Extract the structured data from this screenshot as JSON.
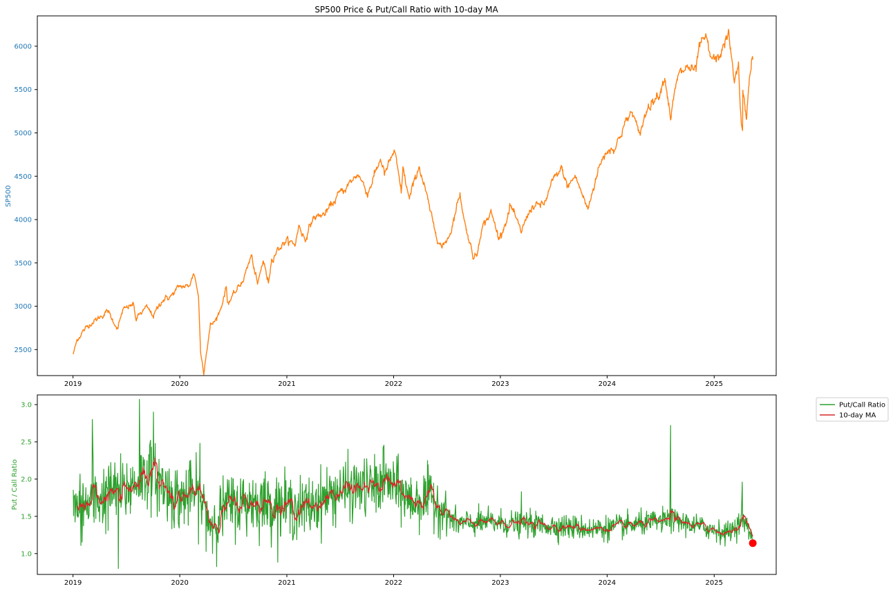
{
  "figure": {
    "title": "SP500 Price & Put/Call Ratio with 10-day MA"
  },
  "chart_data": [
    {
      "type": "line",
      "title": "SP500 Price & Put/Call Ratio with 10-day MA",
      "xlabel": "",
      "ylabel": "SP500",
      "xlim": [
        "2018-09-01",
        "2025-08-01"
      ],
      "ylim": [
        2200,
        6350
      ],
      "x_ticks": [
        "2019",
        "2020",
        "2021",
        "2022",
        "2023",
        "2024",
        "2025"
      ],
      "y_ticks": [
        "2500",
        "3000",
        "3500",
        "4000",
        "4500",
        "5000",
        "5500",
        "6000"
      ],
      "grid": false,
      "ylabel_color": "#1f77b4",
      "series": [
        {
          "color": "#ff7f0e",
          "points": [
            [
              "2019-01-02",
              2450
            ],
            [
              "2019-01-15",
              2610
            ],
            [
              "2019-02-01",
              2700
            ],
            [
              "2019-03-01",
              2800
            ],
            [
              "2019-04-01",
              2870
            ],
            [
              "2019-04-30",
              2945
            ],
            [
              "2019-05-15",
              2850
            ],
            [
              "2019-06-03",
              2745
            ],
            [
              "2019-06-20",
              2950
            ],
            [
              "2019-07-26",
              3025
            ],
            [
              "2019-08-05",
              2845
            ],
            [
              "2019-08-20",
              2920
            ],
            [
              "2019-09-10",
              2985
            ],
            [
              "2019-10-03",
              2890
            ],
            [
              "2019-11-01",
              3070
            ],
            [
              "2019-12-02",
              3115
            ],
            [
              "2019-12-31",
              3230
            ],
            [
              "2020-01-31",
              3225
            ],
            [
              "2020-02-19",
              3385
            ],
            [
              "2020-03-05",
              3120
            ],
            [
              "2020-03-12",
              2480
            ],
            [
              "2020-03-23",
              2240
            ],
            [
              "2020-04-01",
              2470
            ],
            [
              "2020-04-15",
              2780
            ],
            [
              "2020-05-01",
              2830
            ],
            [
              "2020-05-20",
              2970
            ],
            [
              "2020-06-08",
              3230
            ],
            [
              "2020-06-12",
              3040
            ],
            [
              "2020-07-01",
              3115
            ],
            [
              "2020-08-03",
              3295
            ],
            [
              "2020-09-02",
              3580
            ],
            [
              "2020-09-23",
              3240
            ],
            [
              "2020-10-12",
              3535
            ],
            [
              "2020-10-30",
              3270
            ],
            [
              "2020-11-10",
              3545
            ],
            [
              "2020-12-01",
              3660
            ],
            [
              "2020-12-31",
              3755
            ],
            [
              "2021-01-29",
              3715
            ],
            [
              "2021-02-12",
              3935
            ],
            [
              "2021-03-04",
              3770
            ],
            [
              "2021-04-01",
              4020
            ],
            [
              "2021-05-12",
              4065
            ],
            [
              "2021-06-30",
              4300
            ],
            [
              "2021-07-30",
              4395
            ],
            [
              "2021-09-02",
              4535
            ],
            [
              "2021-10-04",
              4300
            ],
            [
              "2021-11-18",
              4705
            ],
            [
              "2021-12-01",
              4515
            ],
            [
              "2022-01-03",
              4795
            ],
            [
              "2022-01-27",
              4325
            ],
            [
              "2022-02-02",
              4590
            ],
            [
              "2022-02-24",
              4225
            ],
            [
              "2022-03-29",
              4630
            ],
            [
              "2022-05-02",
              4155
            ],
            [
              "2022-05-20",
              3900
            ],
            [
              "2022-06-16",
              3665
            ],
            [
              "2022-07-15",
              3860
            ],
            [
              "2022-08-16",
              4305
            ],
            [
              "2022-09-01",
              3965
            ],
            [
              "2022-09-30",
              3585
            ],
            [
              "2022-10-12",
              3575
            ],
            [
              "2022-10-28",
              3900
            ],
            [
              "2022-11-30",
              4080
            ],
            [
              "2022-12-28",
              3785
            ],
            [
              "2023-01-31",
              4075
            ],
            [
              "2023-02-02",
              4180
            ],
            [
              "2023-03-13",
              3855
            ],
            [
              "2023-04-14",
              4135
            ],
            [
              "2023-05-31",
              4180
            ],
            [
              "2023-06-30",
              4450
            ],
            [
              "2023-07-31",
              4590
            ],
            [
              "2023-08-18",
              4370
            ],
            [
              "2023-09-14",
              4505
            ],
            [
              "2023-10-27",
              4115
            ],
            [
              "2023-11-30",
              4565
            ],
            [
              "2023-12-28",
              4785
            ],
            [
              "2024-01-31",
              4845
            ],
            [
              "2024-02-29",
              5095
            ],
            [
              "2024-03-28",
              5250
            ],
            [
              "2024-04-19",
              4965
            ],
            [
              "2024-05-21",
              5320
            ],
            [
              "2024-06-28",
              5460
            ],
            [
              "2024-07-16",
              5665
            ],
            [
              "2024-08-05",
              5185
            ],
            [
              "2024-08-30",
              5650
            ],
            [
              "2024-09-30",
              5760
            ],
            [
              "2024-10-31",
              5705
            ],
            [
              "2024-11-11",
              6000
            ],
            [
              "2024-12-06",
              6090
            ],
            [
              "2024-12-18",
              5870
            ],
            [
              "2025-01-13",
              5835
            ],
            [
              "2025-02-19",
              6145
            ],
            [
              "2025-03-10",
              5615
            ],
            [
              "2025-03-25",
              5775
            ],
            [
              "2025-04-04",
              5075
            ],
            [
              "2025-04-08",
              4980
            ],
            [
              "2025-04-09",
              5455
            ],
            [
              "2025-04-21",
              5160
            ],
            [
              "2025-05-02",
              5685
            ],
            [
              "2025-05-13",
              5890
            ]
          ]
        }
      ]
    },
    {
      "type": "line",
      "title": "",
      "xlabel": "",
      "ylabel": "Put / Call Ratio",
      "xlim": [
        "2018-09-01",
        "2025-08-01"
      ],
      "ylim": [
        0.72,
        3.13
      ],
      "x_ticks": [
        "2019",
        "2020",
        "2021",
        "2022",
        "2023",
        "2024",
        "2025"
      ],
      "y_ticks": [
        "1.0",
        "1.5",
        "2.0",
        "2.5",
        "3.0"
      ],
      "grid": false,
      "ylabel_color": "#2ca02c",
      "legend": {
        "placement": "outside upper right"
      },
      "series": [
        {
          "name": "Put/Call Ratio",
          "color": "#2ca02c",
          "anchors": [
            [
              "2019-01-02",
              1.55
            ],
            [
              "2019-04-01",
              1.75
            ],
            [
              "2019-07-01",
              1.85
            ],
            [
              "2019-09-15",
              2.1
            ],
            [
              "2019-12-15",
              1.75
            ],
            [
              "2020-03-01",
              1.8
            ],
            [
              "2020-04-15",
              1.4
            ],
            [
              "2020-06-15",
              1.65
            ],
            [
              "2020-09-01",
              1.7
            ],
            [
              "2020-12-01",
              1.65
            ],
            [
              "2021-03-01",
              1.6
            ],
            [
              "2021-07-01",
              1.85
            ],
            [
              "2021-11-01",
              1.9
            ],
            [
              "2021-12-15",
              1.95
            ],
            [
              "2022-03-01",
              1.7
            ],
            [
              "2022-05-15",
              1.75
            ],
            [
              "2022-08-01",
              1.4
            ],
            [
              "2022-12-01",
              1.42
            ],
            [
              "2023-06-01",
              1.38
            ],
            [
              "2023-12-01",
              1.33
            ],
            [
              "2024-05-01",
              1.4
            ],
            [
              "2024-08-05",
              1.45
            ],
            [
              "2024-12-01",
              1.35
            ],
            [
              "2025-02-15",
              1.27
            ],
            [
              "2025-04-10",
              1.45
            ],
            [
              "2025-05-13",
              1.2
            ]
          ],
          "noise_amplitude": [
            [
              "2019-01-02",
              0.42
            ],
            [
              "2020-06-01",
              0.38
            ],
            [
              "2022-06-01",
              0.34
            ],
            [
              "2022-07-15",
              0.16
            ],
            [
              "2025-05-13",
              0.13
            ]
          ],
          "spikes": [
            [
              "2019-06-05",
              0.8
            ],
            [
              "2019-08-16",
              3.07
            ],
            [
              "2019-10-03",
              2.9
            ],
            [
              "2019-03-08",
              2.8
            ],
            [
              "2020-03-10",
              2.48
            ],
            [
              "2021-11-26",
              2.42
            ],
            [
              "2023-03-14",
              1.83
            ],
            [
              "2024-08-05",
              2.72
            ],
            [
              "2025-04-07",
              1.96
            ]
          ]
        },
        {
          "name": "10-day MA",
          "color": "#d62728",
          "window": 10
        }
      ],
      "highlight_point": {
        "date": "2025-05-13",
        "value": 1.14,
        "color": "#ff0000"
      }
    }
  ]
}
